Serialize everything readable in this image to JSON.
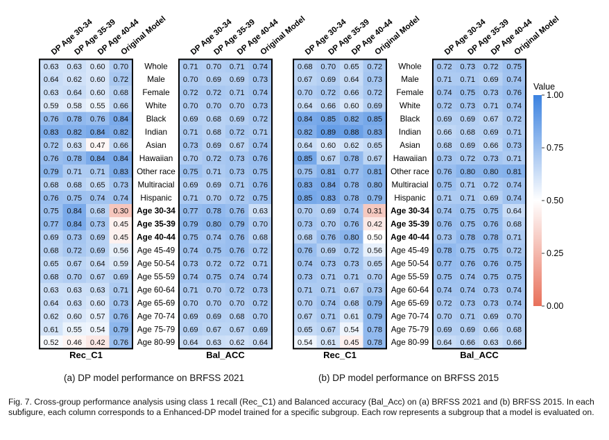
{
  "row_labels": [
    "Whole",
    "Male",
    "Female",
    "White",
    "Black",
    "Indian",
    "Asian",
    "Hawaiian",
    "Other race",
    "Multiracial",
    "Hispanic",
    "Age 30-34",
    "Age 35-39",
    "Age 40-44",
    "Age 45-49",
    "Age 50-54",
    "Age 55-59",
    "Age 60-64",
    "Age 65-69",
    "Age 70-74",
    "Age 75-79",
    "Age 80-99"
  ],
  "bold_rows": [
    "Age 30-34",
    "Age 35-39",
    "Age 40-44"
  ],
  "colors": {
    "high": "#3b82e0",
    "mid": "#ffffff",
    "low": "#e8705a"
  },
  "chart_data": [
    {
      "type": "heatmap",
      "columns": [
        "DP Age 30-34",
        "DP Age 35-39",
        "DP Age 40-44",
        "Original Model"
      ],
      "xlabel": "Rec_C1",
      "values": [
        [
          0.63,
          0.63,
          0.6,
          0.7
        ],
        [
          0.64,
          0.62,
          0.6,
          0.72
        ],
        [
          0.63,
          0.64,
          0.6,
          0.68
        ],
        [
          0.59,
          0.58,
          0.55,
          0.66
        ],
        [
          0.76,
          0.78,
          0.76,
          0.84
        ],
        [
          0.83,
          0.82,
          0.84,
          0.82
        ],
        [
          0.72,
          0.63,
          0.47,
          0.66
        ],
        [
          0.76,
          0.78,
          0.84,
          0.84
        ],
        [
          0.79,
          0.71,
          0.71,
          0.83
        ],
        [
          0.68,
          0.68,
          0.65,
          0.73
        ],
        [
          0.76,
          0.75,
          0.74,
          0.74
        ],
        [
          0.75,
          0.84,
          0.68,
          0.3
        ],
        [
          0.77,
          0.84,
          0.73,
          0.45
        ],
        [
          0.69,
          0.73,
          0.69,
          0.45
        ],
        [
          0.68,
          0.72,
          0.69,
          0.56
        ],
        [
          0.65,
          0.67,
          0.64,
          0.59
        ],
        [
          0.68,
          0.7,
          0.67,
          0.69
        ],
        [
          0.63,
          0.63,
          0.63,
          0.71
        ],
        [
          0.64,
          0.63,
          0.6,
          0.73
        ],
        [
          0.62,
          0.6,
          0.57,
          0.76
        ],
        [
          0.61,
          0.55,
          0.54,
          0.79
        ],
        [
          0.52,
          0.46,
          0.42,
          0.76
        ]
      ]
    },
    {
      "type": "heatmap",
      "columns": [
        "DP Age 30-34",
        "DP Age 35-39",
        "DP Age 40-44",
        "Original Model"
      ],
      "xlabel": "Bal_ACC",
      "values": [
        [
          0.71,
          0.7,
          0.71,
          0.74
        ],
        [
          0.7,
          0.69,
          0.69,
          0.73
        ],
        [
          0.72,
          0.72,
          0.71,
          0.74
        ],
        [
          0.7,
          0.7,
          0.7,
          0.73
        ],
        [
          0.69,
          0.68,
          0.69,
          0.72
        ],
        [
          0.71,
          0.68,
          0.72,
          0.71
        ],
        [
          0.73,
          0.69,
          0.67,
          0.74
        ],
        [
          0.7,
          0.72,
          0.73,
          0.76
        ],
        [
          0.75,
          0.71,
          0.73,
          0.75
        ],
        [
          0.69,
          0.69,
          0.71,
          0.76
        ],
        [
          0.71,
          0.7,
          0.72,
          0.75
        ],
        [
          0.77,
          0.78,
          0.76,
          0.63
        ],
        [
          0.79,
          0.8,
          0.79,
          0.7
        ],
        [
          0.75,
          0.74,
          0.76,
          0.68
        ],
        [
          0.74,
          0.75,
          0.76,
          0.72
        ],
        [
          0.73,
          0.72,
          0.72,
          0.71
        ],
        [
          0.74,
          0.75,
          0.74,
          0.74
        ],
        [
          0.71,
          0.7,
          0.72,
          0.73
        ],
        [
          0.7,
          0.7,
          0.7,
          0.72
        ],
        [
          0.69,
          0.69,
          0.68,
          0.7
        ],
        [
          0.69,
          0.67,
          0.67,
          0.69
        ],
        [
          0.64,
          0.63,
          0.62,
          0.64
        ]
      ]
    },
    {
      "type": "heatmap",
      "columns": [
        "DP Age 30-34",
        "DP Age 35-39",
        "DP Age 40-44",
        "Original Model"
      ],
      "xlabel": "Rec_C1",
      "values": [
        [
          0.68,
          0.7,
          0.65,
          0.72
        ],
        [
          0.67,
          0.69,
          0.64,
          0.73
        ],
        [
          0.7,
          0.72,
          0.66,
          0.72
        ],
        [
          0.64,
          0.66,
          0.6,
          0.69
        ],
        [
          0.84,
          0.85,
          0.82,
          0.85
        ],
        [
          0.82,
          0.89,
          0.88,
          0.83
        ],
        [
          0.64,
          0.6,
          0.62,
          0.65
        ],
        [
          0.85,
          0.67,
          0.78,
          0.67
        ],
        [
          0.75,
          0.81,
          0.77,
          0.81
        ],
        [
          0.83,
          0.84,
          0.78,
          0.8
        ],
        [
          0.85,
          0.83,
          0.78,
          0.79
        ],
        [
          0.7,
          0.69,
          0.74,
          0.31
        ],
        [
          0.73,
          0.7,
          0.76,
          0.42
        ],
        [
          0.68,
          0.76,
          0.8,
          0.5
        ],
        [
          0.76,
          0.69,
          0.72,
          0.56
        ],
        [
          0.74,
          0.73,
          0.73,
          0.65
        ],
        [
          0.73,
          0.71,
          0.71,
          0.7
        ],
        [
          0.71,
          0.71,
          0.67,
          0.73
        ],
        [
          0.7,
          0.74,
          0.68,
          0.79
        ],
        [
          0.67,
          0.71,
          0.61,
          0.79
        ],
        [
          0.65,
          0.67,
          0.54,
          0.78
        ],
        [
          0.54,
          0.61,
          0.45,
          0.78
        ]
      ]
    },
    {
      "type": "heatmap",
      "columns": [
        "DP Age 30-34",
        "DP Age 35-39",
        "DP Age 40-44",
        "Original Model"
      ],
      "xlabel": "Bal_ACC",
      "values": [
        [
          0.72,
          0.73,
          0.72,
          0.75
        ],
        [
          0.71,
          0.71,
          0.69,
          0.74
        ],
        [
          0.74,
          0.75,
          0.73,
          0.76
        ],
        [
          0.72,
          0.73,
          0.71,
          0.74
        ],
        [
          0.69,
          0.69,
          0.67,
          0.72
        ],
        [
          0.66,
          0.68,
          0.69,
          0.71
        ],
        [
          0.68,
          0.69,
          0.66,
          0.73
        ],
        [
          0.73,
          0.72,
          0.73,
          0.71
        ],
        [
          0.76,
          0.8,
          0.8,
          0.81
        ],
        [
          0.75,
          0.71,
          0.72,
          0.74
        ],
        [
          0.71,
          0.71,
          0.69,
          0.74
        ],
        [
          0.74,
          0.75,
          0.75,
          0.64
        ],
        [
          0.76,
          0.75,
          0.76,
          0.68
        ],
        [
          0.73,
          0.78,
          0.78,
          0.71
        ],
        [
          0.78,
          0.75,
          0.75,
          0.72
        ],
        [
          0.77,
          0.76,
          0.76,
          0.75
        ],
        [
          0.75,
          0.74,
          0.75,
          0.75
        ],
        [
          0.74,
          0.74,
          0.73,
          0.74
        ],
        [
          0.72,
          0.73,
          0.73,
          0.74
        ],
        [
          0.7,
          0.71,
          0.69,
          0.7
        ],
        [
          0.69,
          0.69,
          0.66,
          0.68
        ],
        [
          0.64,
          0.66,
          0.63,
          0.66
        ]
      ]
    }
  ],
  "colorbar": {
    "title": "Value",
    "ticks": [
      "1.00",
      "0.75",
      "0.50",
      "0.25",
      "0.00"
    ],
    "range": [
      0,
      1
    ]
  },
  "subcaptions": [
    "(a) DP model performance on BRFSS 2021",
    "(b) DP model performance on BRFSS 2015"
  ],
  "figure_caption": "Fig. 7.   Cross-group performance analysis using class 1 recall (Rec_C1) and Balanced accuracy (Bal_Acc) on (a) BRFSS 2021 and (b) BRFSS 2015. In each subfigure, each column corresponds to a Enhanced-DP model trained for a specific subgroup. Each row represents a subgroup that a model is evaluated on."
}
